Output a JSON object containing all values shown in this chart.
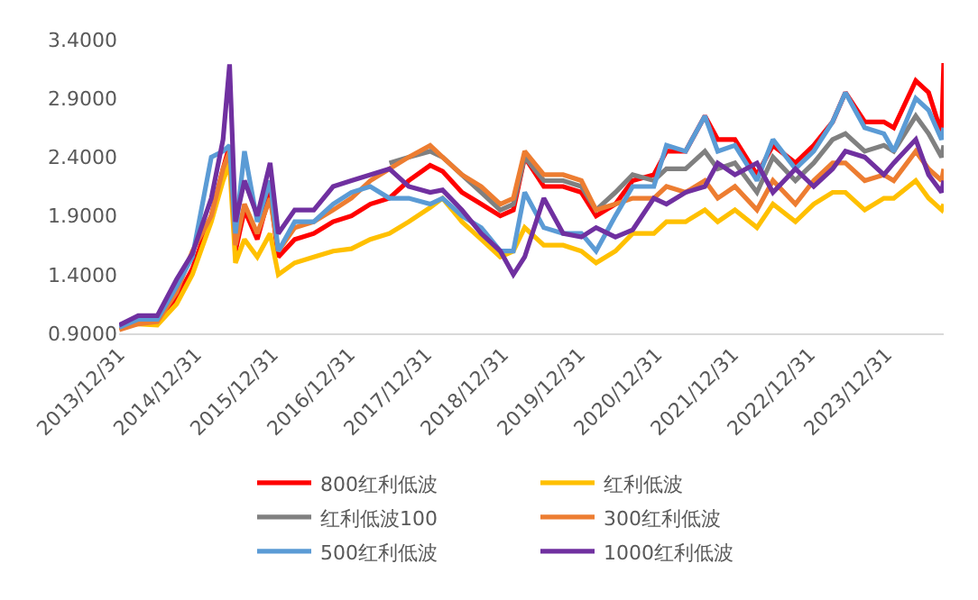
{
  "chart_data": {
    "type": "line",
    "x": [
      "2014-01-01",
      "2014-04-01",
      "2014-07-01",
      "2014-10-01",
      "2014-12-15",
      "2015-03-15",
      "2015-05-10",
      "2015-06-10",
      "2015-07-08",
      "2015-08-20",
      "2015-10-20",
      "2015-12-20",
      "2016-01-28",
      "2016-04-15",
      "2016-07-15",
      "2016-10-15",
      "2017-01-10",
      "2017-04-10",
      "2017-07-10",
      "2017-10-10",
      "2018-01-20",
      "2018-03-20",
      "2018-06-20",
      "2018-09-20",
      "2018-12-20",
      "2019-02-20",
      "2019-04-15",
      "2019-07-15",
      "2019-10-15",
      "2020-01-10",
      "2020-03-20",
      "2020-06-20",
      "2020-09-10",
      "2020-12-20",
      "2021-02-18",
      "2021-05-20",
      "2021-08-20",
      "2021-10-20",
      "2022-01-10",
      "2022-04-25",
      "2022-07-10",
      "2022-10-25",
      "2023-01-20",
      "2023-04-20",
      "2023-06-20",
      "2023-09-20",
      "2023-12-20",
      "2024-02-05",
      "2024-05-20",
      "2024-07-20",
      "2024-09-20",
      "2024-09-30"
    ],
    "series": [
      {
        "name": "800红利低波",
        "color": "#ff0000",
        "values": [
          0.95,
          1.0,
          1.0,
          1.2,
          1.45,
          1.9,
          2.3,
          2.5,
          1.6,
          1.95,
          1.7,
          2.1,
          1.55,
          1.7,
          1.75,
          1.85,
          1.9,
          2.0,
          2.05,
          2.2,
          2.33,
          2.28,
          2.1,
          2.0,
          1.9,
          1.95,
          2.4,
          2.15,
          2.15,
          2.1,
          1.9,
          2.0,
          2.2,
          2.25,
          2.45,
          2.45,
          2.75,
          2.55,
          2.55,
          2.25,
          2.5,
          2.35,
          2.5,
          2.7,
          2.95,
          2.7,
          2.7,
          2.65,
          3.05,
          2.95,
          2.6,
          3.2
        ]
      },
      {
        "name": "红利低波",
        "color": "#ffc000",
        "values": [
          0.95,
          0.98,
          0.97,
          1.15,
          1.4,
          1.85,
          2.2,
          2.35,
          1.5,
          1.7,
          1.55,
          1.75,
          1.4,
          1.5,
          1.55,
          1.6,
          1.62,
          1.7,
          1.75,
          1.85,
          1.97,
          2.05,
          1.85,
          1.7,
          1.55,
          1.6,
          1.8,
          1.65,
          1.65,
          1.6,
          1.5,
          1.6,
          1.75,
          1.75,
          1.85,
          1.85,
          1.95,
          1.85,
          1.95,
          1.8,
          2.0,
          1.85,
          2.0,
          2.1,
          2.1,
          1.95,
          2.05,
          2.05,
          2.2,
          2.05,
          1.95,
          2.0
        ]
      },
      {
        "name": "红利低波100",
        "color": "#808080",
        "values": [
          null,
          null,
          null,
          null,
          null,
          null,
          null,
          null,
          null,
          null,
          null,
          null,
          null,
          null,
          null,
          null,
          null,
          null,
          2.35,
          2.4,
          2.45,
          2.4,
          2.25,
          2.1,
          1.95,
          2.0,
          2.4,
          2.2,
          2.2,
          2.15,
          1.95,
          2.1,
          2.25,
          2.2,
          2.3,
          2.3,
          2.45,
          2.3,
          2.35,
          2.1,
          2.4,
          2.2,
          2.35,
          2.55,
          2.6,
          2.45,
          2.5,
          2.45,
          2.75,
          2.6,
          2.4,
          2.5
        ]
      },
      {
        "name": "300红利低波",
        "color": "#ed7d31",
        "values": [
          0.93,
          0.98,
          1.0,
          1.25,
          1.6,
          1.9,
          2.3,
          2.45,
          1.65,
          2.0,
          1.75,
          2.05,
          1.6,
          1.8,
          1.85,
          1.95,
          2.05,
          2.2,
          2.3,
          2.4,
          2.5,
          2.4,
          2.25,
          2.15,
          2.0,
          2.05,
          2.45,
          2.25,
          2.25,
          2.2,
          1.95,
          2.0,
          2.05,
          2.05,
          2.15,
          2.1,
          2.2,
          2.05,
          2.15,
          1.95,
          2.2,
          2.0,
          2.2,
          2.35,
          2.35,
          2.2,
          2.25,
          2.2,
          2.45,
          2.3,
          2.2,
          2.3
        ]
      },
      {
        "name": "500红利低波",
        "color": "#5b9bd5",
        "values": [
          0.95,
          1.02,
          1.02,
          1.3,
          1.55,
          2.4,
          2.45,
          2.5,
          1.75,
          2.45,
          1.85,
          2.2,
          1.6,
          1.85,
          1.85,
          2.0,
          2.1,
          2.15,
          2.05,
          2.05,
          2.0,
          2.05,
          1.9,
          1.8,
          1.6,
          1.6,
          2.1,
          1.8,
          1.75,
          1.75,
          1.6,
          1.9,
          2.15,
          2.15,
          2.5,
          2.45,
          2.75,
          2.45,
          2.5,
          2.2,
          2.55,
          2.3,
          2.45,
          2.7,
          2.95,
          2.65,
          2.6,
          2.45,
          2.9,
          2.8,
          2.55,
          2.65
        ]
      },
      {
        "name": "1000红利低波",
        "color": "#7030a0",
        "values": [
          0.97,
          1.05,
          1.05,
          1.36,
          1.58,
          2.05,
          2.55,
          3.19,
          1.85,
          2.2,
          1.9,
          2.35,
          1.75,
          1.95,
          1.95,
          2.15,
          2.2,
          2.25,
          2.3,
          2.15,
          2.1,
          2.12,
          1.95,
          1.75,
          1.6,
          1.4,
          1.55,
          2.05,
          1.75,
          1.72,
          1.8,
          1.72,
          1.78,
          2.05,
          2.0,
          2.1,
          2.15,
          2.35,
          2.25,
          2.35,
          2.1,
          2.3,
          2.15,
          2.3,
          2.45,
          2.4,
          2.25,
          2.35,
          2.55,
          2.25,
          2.1,
          2.2
        ]
      }
    ],
    "xlim": [
      "2013-12-31",
      "2024-09-30"
    ],
    "xticks": [
      {
        "value": "2013-12-31",
        "label": "2013/12/31"
      },
      {
        "value": "2014-12-31",
        "label": "2014/12/31"
      },
      {
        "value": "2015-12-31",
        "label": "2015/12/31"
      },
      {
        "value": "2016-12-31",
        "label": "2016/12/31"
      },
      {
        "value": "2017-12-31",
        "label": "2017/12/31"
      },
      {
        "value": "2018-12-31",
        "label": "2018/12/31"
      },
      {
        "value": "2019-12-31",
        "label": "2019/12/31"
      },
      {
        "value": "2020-12-31",
        "label": "2020/12/31"
      },
      {
        "value": "2021-12-31",
        "label": "2021/12/31"
      },
      {
        "value": "2022-12-31",
        "label": "2022/12/31"
      },
      {
        "value": "2023-12-31",
        "label": "2023/12/31"
      }
    ],
    "ylim": [
      0.9,
      3.4
    ],
    "yticks": [
      {
        "value": 0.9,
        "label": "0.9000"
      },
      {
        "value": 1.4,
        "label": "1.4000"
      },
      {
        "value": 1.9,
        "label": "1.9000"
      },
      {
        "value": 2.4,
        "label": "2.4000"
      },
      {
        "value": 2.9,
        "label": "2.9000"
      },
      {
        "value": 3.4,
        "label": "3.4000"
      }
    ],
    "grid": false,
    "legend": "bottom",
    "marker": "none",
    "line_style": "solid"
  }
}
